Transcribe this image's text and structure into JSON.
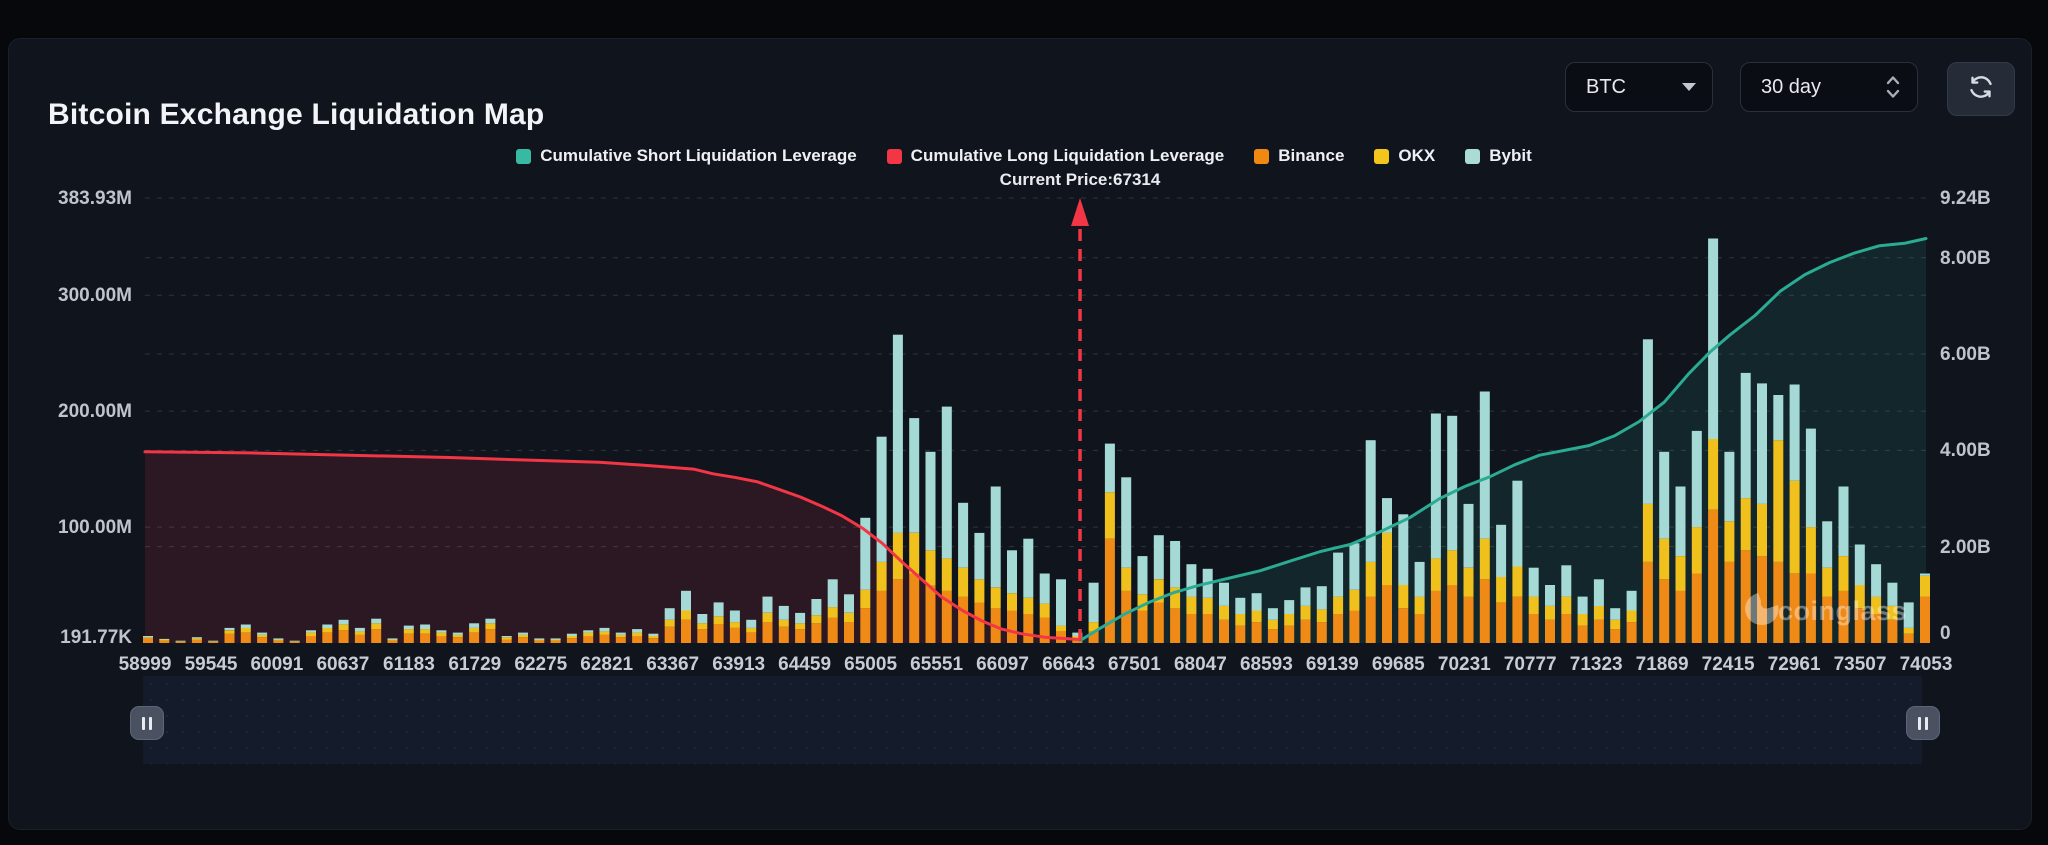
{
  "page": {
    "title": "Bitcoin Exchange Liquidation Map"
  },
  "controls": {
    "symbol": "BTC",
    "period": "30 day",
    "refresh_icon": "refresh-sync-arrows"
  },
  "legend": {
    "items": [
      {
        "label": "Cumulative Short Liquidation Leverage",
        "color": "#38b9a1"
      },
      {
        "label": "Cumulative Long Liquidation Leverage",
        "color": "#f23645"
      },
      {
        "label": "Binance",
        "color": "#f08912"
      },
      {
        "label": "OKX",
        "color": "#f4c51c"
      },
      {
        "label": "Bybit",
        "color": "#aadbd7"
      }
    ]
  },
  "watermark": {
    "text": "coinglass",
    "icon": "coinglass-logo"
  },
  "chart_data": {
    "type": "bar",
    "subtype": "stacked-bars-with-cumulative-lines",
    "title": "Bitcoin Exchange Liquidation Map",
    "current_price": 67314,
    "current_price_label": "Current Price:67314",
    "grid": "dashed",
    "left_axis": {
      "max": 383.93,
      "unit": "M",
      "ticks": [
        {
          "label": "383.93M",
          "value": 383.93
        },
        {
          "label": "300.00M",
          "value": 300
        },
        {
          "label": "200.00M",
          "value": 200
        },
        {
          "label": "100.00M",
          "value": 100
        },
        {
          "label": "191.77K",
          "value": 0.19
        }
      ],
      "grid_values": [
        383.93,
        300,
        200,
        100
      ]
    },
    "right_axis": {
      "max": 9.24,
      "unit": "B",
      "ticks": [
        {
          "label": "9.24B",
          "value": 9.24
        },
        {
          "label": "8.00B",
          "value": 8
        },
        {
          "label": "6.00B",
          "value": 6
        },
        {
          "label": "4.00B",
          "value": 4
        },
        {
          "label": "2.00B",
          "value": 2
        },
        {
          "label": "0",
          "value": 0
        }
      ],
      "grid_values": [
        8,
        6,
        4,
        2
      ]
    },
    "x_axis": {
      "labels": [
        "58999",
        "59545",
        "60091",
        "60637",
        "61183",
        "61729",
        "62275",
        "62821",
        "63367",
        "63913",
        "64459",
        "65005",
        "65551",
        "66097",
        "66643",
        "67501",
        "68047",
        "68593",
        "69139",
        "69685",
        "70231",
        "70777",
        "71323",
        "71869",
        "72415",
        "72961",
        "73507",
        "74053"
      ]
    },
    "bars": {
      "stack_order": [
        "Binance",
        "OKX",
        "Bybit"
      ],
      "colors": {
        "Binance": "#ef8a16",
        "OKX": "#f0c11d",
        "Bybit": "#a5d9d5"
      },
      "unit": "millions_usd",
      "values_millions": [
        [
          4,
          1,
          1
        ],
        [
          2,
          1,
          0.5
        ],
        [
          1,
          0.5,
          0.5
        ],
        [
          3,
          1,
          1
        ],
        [
          1,
          0.5,
          0.5
        ],
        [
          8,
          3,
          2
        ],
        [
          9,
          4,
          3
        ],
        [
          5,
          2,
          2
        ],
        [
          2,
          1,
          1
        ],
        [
          1,
          0.5,
          0.5
        ],
        [
          6,
          3,
          2
        ],
        [
          9,
          4,
          3
        ],
        [
          11,
          5,
          4
        ],
        [
          7,
          3,
          3
        ],
        [
          12,
          5,
          4
        ],
        [
          2,
          1,
          1
        ],
        [
          8,
          4,
          3
        ],
        [
          8,
          4,
          4
        ],
        [
          6,
          3,
          2
        ],
        [
          5,
          2,
          2
        ],
        [
          9,
          4,
          4
        ],
        [
          12,
          5,
          4
        ],
        [
          3,
          2,
          1
        ],
        [
          5,
          2,
          2
        ],
        [
          2,
          1,
          1
        ],
        [
          2,
          1,
          1
        ],
        [
          4,
          2,
          2
        ],
        [
          6,
          3,
          2
        ],
        [
          7,
          3,
          3
        ],
        [
          5,
          2,
          2
        ],
        [
          6,
          3,
          3
        ],
        [
          4,
          2,
          2
        ],
        [
          14,
          6,
          10
        ],
        [
          20,
          8,
          17
        ],
        [
          12,
          5,
          8
        ],
        [
          16,
          7,
          12
        ],
        [
          13,
          5,
          10
        ],
        [
          9,
          4,
          7
        ],
        [
          18,
          8,
          14
        ],
        [
          14,
          6,
          12
        ],
        [
          12,
          5,
          9
        ],
        [
          17,
          7,
          14
        ],
        [
          22,
          9,
          24
        ],
        [
          18,
          8,
          16
        ],
        [
          30,
          16,
          62
        ],
        [
          45,
          25,
          108
        ],
        [
          55,
          40,
          171
        ],
        [
          60,
          35,
          99
        ],
        [
          50,
          30,
          85
        ],
        [
          45,
          28,
          131
        ],
        [
          40,
          25,
          56
        ],
        [
          35,
          20,
          40
        ],
        [
          30,
          18,
          87
        ],
        [
          28,
          15,
          37
        ],
        [
          25,
          14,
          51
        ],
        [
          22,
          12,
          26
        ],
        [
          10,
          5,
          40
        ],
        [
          4,
          2,
          3
        ],
        [
          10,
          8,
          34
        ],
        [
          90,
          40,
          42
        ],
        [
          45,
          20,
          78
        ],
        [
          28,
          14,
          33
        ],
        [
          35,
          20,
          38
        ],
        [
          30,
          18,
          40
        ],
        [
          25,
          15,
          28
        ],
        [
          25,
          14,
          25
        ],
        [
          20,
          12,
          20
        ],
        [
          15,
          10,
          14
        ],
        [
          18,
          10,
          15
        ],
        [
          12,
          8,
          10
        ],
        [
          15,
          10,
          12
        ],
        [
          20,
          12,
          16
        ],
        [
          18,
          11,
          20
        ],
        [
          25,
          15,
          38
        ],
        [
          28,
          18,
          40
        ],
        [
          40,
          30,
          105
        ],
        [
          50,
          45,
          30
        ],
        [
          30,
          20,
          61
        ],
        [
          25,
          15,
          30
        ],
        [
          45,
          28,
          125
        ],
        [
          50,
          30,
          116
        ],
        [
          40,
          25,
          55
        ],
        [
          55,
          35,
          127
        ],
        [
          35,
          22,
          45
        ],
        [
          40,
          26,
          74
        ],
        [
          25,
          15,
          25
        ],
        [
          20,
          12,
          18
        ],
        [
          25,
          15,
          27
        ],
        [
          15,
          10,
          15
        ],
        [
          20,
          12,
          23
        ],
        [
          12,
          8,
          10
        ],
        [
          18,
          10,
          17
        ],
        [
          70,
          50,
          142
        ],
        [
          55,
          35,
          75
        ],
        [
          45,
          30,
          60
        ],
        [
          60,
          40,
          83
        ],
        [
          115,
          61,
          173
        ],
        [
          70,
          35,
          60
        ],
        [
          80,
          45,
          108
        ],
        [
          75,
          45,
          104
        ],
        [
          70,
          105,
          39
        ],
        [
          60,
          80,
          83
        ],
        [
          60,
          40,
          85
        ],
        [
          40,
          25,
          40
        ],
        [
          45,
          30,
          60
        ],
        [
          30,
          20,
          35
        ],
        [
          25,
          15,
          28
        ],
        [
          20,
          12,
          20
        ],
        [
          8,
          5,
          22
        ],
        [
          40,
          18,
          2
        ]
      ]
    },
    "lines": [
      {
        "name": "Cumulative Long Liquidation Leverage",
        "axis": "left",
        "color": "#f23645",
        "fill": "rgba(242,54,69,0.13)",
        "points_frac_value": [
          [
            0,
            165
          ],
          [
            0.059,
            164
          ],
          [
            0.115,
            162
          ],
          [
            0.171,
            160
          ],
          [
            0.211,
            158
          ],
          [
            0.255,
            156
          ],
          [
            0.284,
            153
          ],
          [
            0.308,
            150
          ],
          [
            0.319,
            146
          ],
          [
            0.331,
            143
          ],
          [
            0.344,
            139
          ],
          [
            0.355,
            133
          ],
          [
            0.368,
            126
          ],
          [
            0.38,
            118
          ],
          [
            0.391,
            110
          ],
          [
            0.403,
            99
          ],
          [
            0.414,
            86
          ],
          [
            0.425,
            70
          ],
          [
            0.436,
            55
          ],
          [
            0.447,
            40
          ],
          [
            0.459,
            28
          ],
          [
            0.47,
            19
          ],
          [
            0.481,
            12
          ],
          [
            0.492,
            8
          ],
          [
            0.505,
            5
          ],
          [
            0.525,
            3
          ]
        ]
      },
      {
        "name": "Cumulative Short Liquidation Leverage",
        "axis": "right",
        "color": "#2bab93",
        "fill": "rgba(45,174,150,0.12)",
        "points_frac_value": [
          [
            0.525,
            0.05
          ],
          [
            0.536,
            0.3
          ],
          [
            0.55,
            0.6
          ],
          [
            0.564,
            0.85
          ],
          [
            0.578,
            1.05
          ],
          [
            0.592,
            1.2
          ],
          [
            0.609,
            1.35
          ],
          [
            0.626,
            1.5
          ],
          [
            0.643,
            1.7
          ],
          [
            0.66,
            1.9
          ],
          [
            0.677,
            2.05
          ],
          [
            0.693,
            2.3
          ],
          [
            0.71,
            2.6
          ],
          [
            0.727,
            3.0
          ],
          [
            0.741,
            3.25
          ],
          [
            0.755,
            3.45
          ],
          [
            0.769,
            3.7
          ],
          [
            0.783,
            3.9
          ],
          [
            0.797,
            4.0
          ],
          [
            0.811,
            4.1
          ],
          [
            0.825,
            4.3
          ],
          [
            0.839,
            4.6
          ],
          [
            0.853,
            5.0
          ],
          [
            0.867,
            5.6
          ],
          [
            0.879,
            6.05
          ],
          [
            0.89,
            6.4
          ],
          [
            0.904,
            6.8
          ],
          [
            0.918,
            7.3
          ],
          [
            0.932,
            7.65
          ],
          [
            0.946,
            7.9
          ],
          [
            0.96,
            8.1
          ],
          [
            0.974,
            8.25
          ],
          [
            0.988,
            8.3
          ],
          [
            1,
            8.4
          ]
        ]
      }
    ],
    "current_price_line_frac": 0.525
  }
}
